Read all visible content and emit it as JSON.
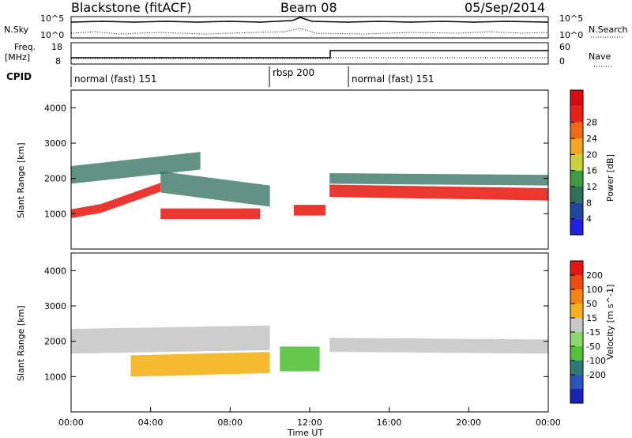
{
  "header": {
    "station": "Blackstone (fitACF)",
    "beam": "Beam 08",
    "date": "05/Sep/2014"
  },
  "noise_panel": {
    "left_label": "N.Sky",
    "left_ticks": [
      "10^5",
      "10^0"
    ],
    "right_label": "N.Search",
    "right_ticks": [
      "10^5",
      "10^0"
    ]
  },
  "freq_panel": {
    "left_label_line1": "Freq.",
    "left_label_line2": "[MHz]",
    "left_ticks": [
      "18",
      "8"
    ],
    "right_label": "Nave",
    "right_ticks": [
      "60",
      "0"
    ]
  },
  "cpid": {
    "label": "CPID",
    "segments": [
      {
        "name": "normal (fast) 151",
        "start": "00:00",
        "end": "10:00"
      },
      {
        "name": "rbsp 200",
        "start": "10:00",
        "end": "14:00"
      },
      {
        "name": "normal (fast) 151",
        "start": "14:00",
        "end": "24:00"
      }
    ]
  },
  "x_axis": {
    "title": "Time UT",
    "ticks": [
      "00:00",
      "04:00",
      "08:00",
      "12:00",
      "16:00",
      "20:00",
      "00:00"
    ]
  },
  "chart_data": [
    {
      "type": "heatmap",
      "panel": "power",
      "ylabel": "Slant Range [km]",
      "yticks": [
        "1000",
        "2000",
        "3000",
        "4000"
      ],
      "ylim": [
        0,
        4500
      ],
      "xlim_hours": [
        0,
        24
      ],
      "colorbar": {
        "label": "Power [dB]",
        "ticks": [
          "4",
          "8",
          "12",
          "16",
          "20",
          "24",
          "28"
        ],
        "colors": [
          "#1e22e0",
          "#20479e",
          "#2e6e5a",
          "#3f9a43",
          "#c8d23a",
          "#f5a522",
          "#f06a12",
          "#e8221a",
          "#d90b10"
        ]
      },
      "bands": [
        {
          "t_start": 0.0,
          "t_end": 1.5,
          "r_center": 1000,
          "r_center_end": 1150,
          "width": 250,
          "level": "high"
        },
        {
          "t_start": 1.5,
          "t_end": 4.5,
          "r_center": 1150,
          "r_center_end": 1750,
          "width": 250,
          "level": "high"
        },
        {
          "t_start": 4.5,
          "t_end": 9.5,
          "r_center": 1000,
          "r_center_end": 1000,
          "width": 300,
          "level": "high"
        },
        {
          "t_start": 11.2,
          "t_end": 12.8,
          "r_center": 1100,
          "r_center_end": 1100,
          "width": 300,
          "level": "high"
        },
        {
          "t_start": 13.0,
          "t_end": 24.0,
          "r_center": 1650,
          "r_center_end": 1550,
          "width": 350,
          "level": "high"
        },
        {
          "t_start": 0.0,
          "t_end": 6.5,
          "r_center": 2100,
          "r_center_end": 2500,
          "width": 500,
          "level": "low"
        },
        {
          "t_start": 4.5,
          "t_end": 10.0,
          "r_center": 1900,
          "r_center_end": 1500,
          "width": 600,
          "level": "low"
        },
        {
          "t_start": 13.0,
          "t_end": 24.0,
          "r_center": 2000,
          "r_center_end": 1950,
          "width": 300,
          "level": "low"
        }
      ]
    },
    {
      "type": "heatmap",
      "panel": "velocity",
      "ylabel": "Slant Range [km]",
      "yticks": [
        "1000",
        "2000",
        "3000",
        "4000"
      ],
      "ylim": [
        0,
        4500
      ],
      "xlim_hours": [
        0,
        24
      ],
      "colorbar": {
        "label": "Velocity [m s^-1]",
        "ticks": [
          "200",
          "100",
          "50",
          "15",
          "-15",
          "-50",
          "-100",
          "-200"
        ],
        "colors": [
          "#1a23b8",
          "#2b55b8",
          "#2d7a78",
          "#53c23a",
          "#8cd86a",
          "#c8c8c8",
          "#f5b21c",
          "#f48410",
          "#f04a10",
          "#e51814"
        ]
      },
      "bands": [
        {
          "t_start": 0.0,
          "t_end": 10.0,
          "r_center": 2000,
          "r_center_end": 2100,
          "width": 700,
          "level": "gray"
        },
        {
          "t_start": 3.0,
          "t_end": 10.0,
          "r_center": 1300,
          "r_center_end": 1400,
          "width": 600,
          "level": "orange"
        },
        {
          "t_start": 10.5,
          "t_end": 12.5,
          "r_center": 1500,
          "r_center_end": 1500,
          "width": 700,
          "level": "green"
        },
        {
          "t_start": 13.0,
          "t_end": 24.0,
          "r_center": 1900,
          "r_center_end": 1850,
          "width": 400,
          "level": "gray"
        }
      ]
    }
  ]
}
